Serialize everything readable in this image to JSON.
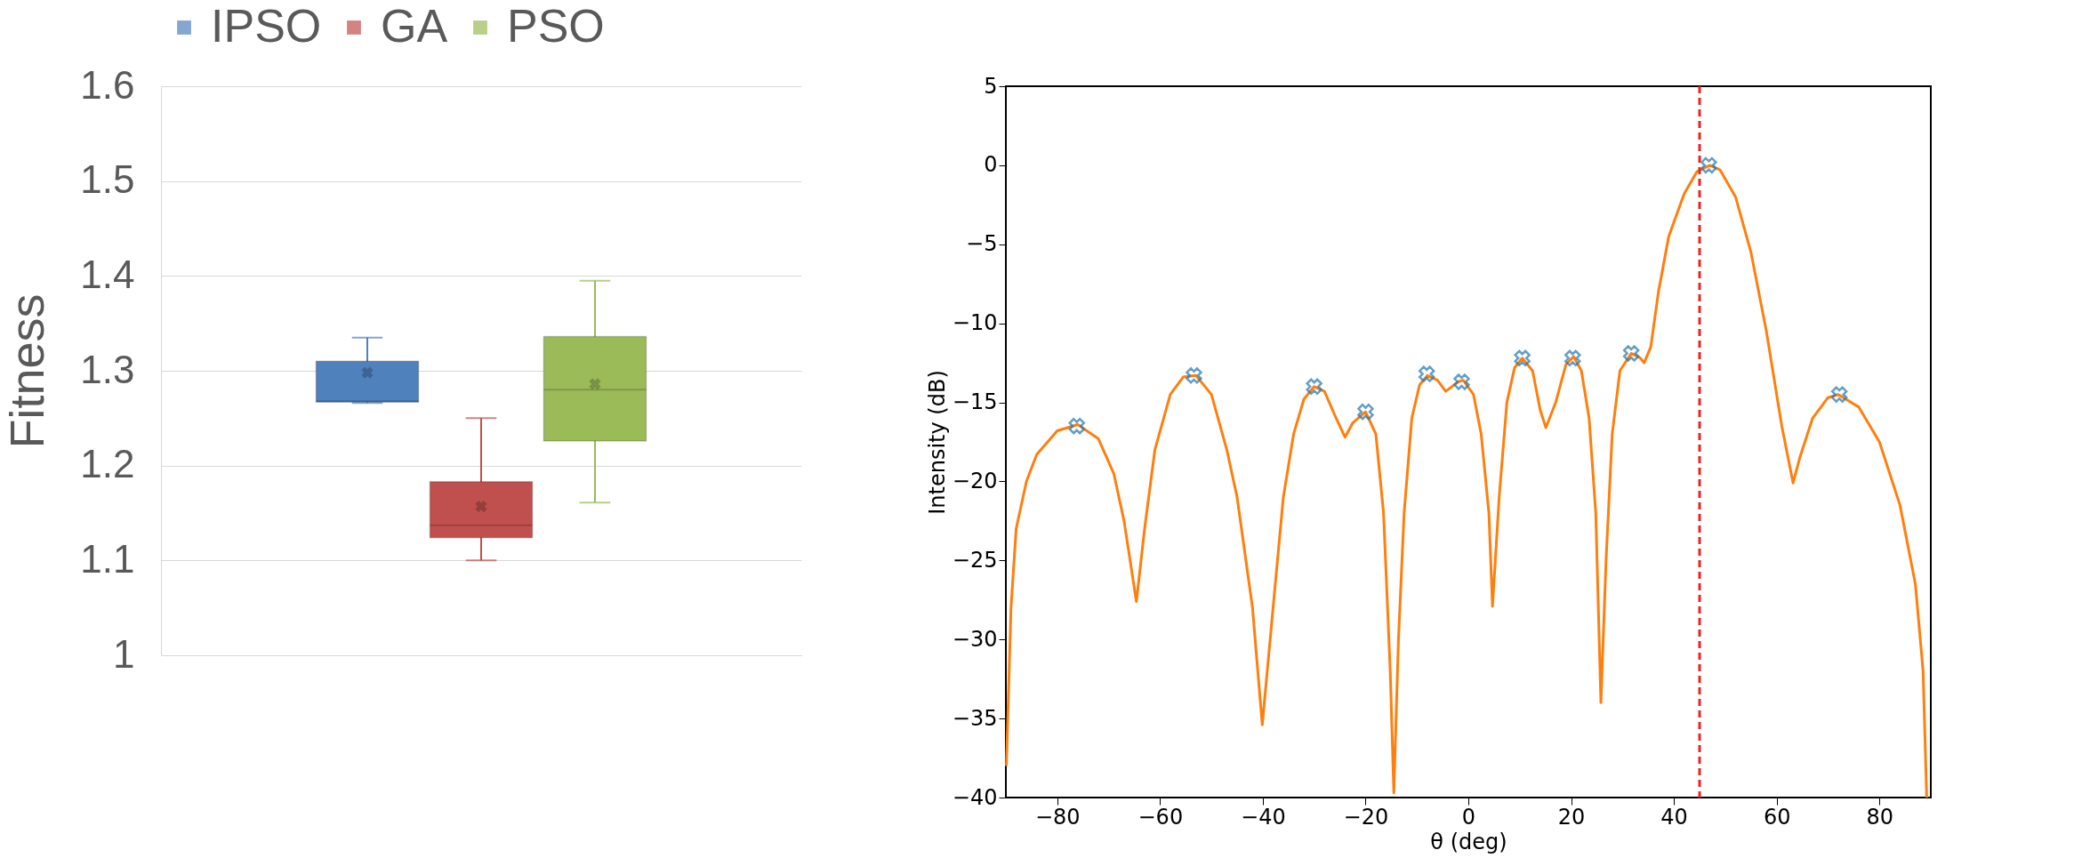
{
  "chart_data": [
    {
      "type": "box",
      "ylabel": "Fitness",
      "categories": [
        null
      ],
      "ylim": [
        1,
        1.6
      ],
      "yticks": [
        1,
        1.1,
        1.2,
        1.3,
        1.4,
        1.5,
        1.6
      ],
      "grid": "y",
      "legend": "top",
      "tick_labels": "y",
      "series": [
        {
          "name": "IPSO",
          "color": "#4f81bd",
          "boxes": [
            {
              "low": 1.266,
              "q1": 1.267,
              "median": 1.268,
              "q3": 1.31,
              "high": 1.335,
              "mean": 1.298
            }
          ]
        },
        {
          "name": "GA",
          "color": "#c0504d",
          "boxes": [
            {
              "low": 1.1,
              "q1": 1.124,
              "median": 1.137,
              "q3": 1.183,
              "high": 1.25,
              "mean": 1.157
            }
          ]
        },
        {
          "name": "PSO",
          "color": "#9bbb59",
          "boxes": [
            {
              "low": 1.161,
              "q1": 1.226,
              "median": 1.28,
              "q3": 1.336,
              "high": 1.395,
              "mean": 1.286
            }
          ]
        }
      ]
    },
    {
      "type": "line",
      "xlabel": "θ (deg)",
      "ylabel": "Intensity (dB)",
      "xlim": [
        -90,
        90
      ],
      "xticks": [
        -80,
        -60,
        -40,
        -20,
        0,
        20,
        40,
        60,
        80
      ],
      "ylim": [
        -40,
        5
      ],
      "yticks": [
        -40,
        -35,
        -30,
        -25,
        -20,
        -15,
        -10,
        -5,
        0,
        5
      ],
      "grid": false,
      "ref_lines": [
        {
          "axis": "x",
          "value": 45,
          "color": "#ee2222",
          "line_style": "dashed"
        }
      ],
      "series": [
        {
          "type": "line",
          "color": "#ff7f0e",
          "marker": "none",
          "x": [
            -89.9,
            -89,
            -88,
            -86,
            -84,
            -80,
            -76,
            -72,
            -69,
            -67,
            -64.6,
            -63,
            -61,
            -58,
            -55.5,
            -53,
            -50,
            -47,
            -45,
            -42,
            -40.1,
            -38,
            -36,
            -34,
            -32,
            -30,
            -28,
            -26,
            -24,
            -22.5,
            -20,
            -18,
            -16.5,
            -15.2,
            -14.5,
            -13.6,
            -12.5,
            -11,
            -9.5,
            -8,
            -6,
            -4.4,
            -2,
            -1,
            1,
            2.5,
            4,
            4.7,
            6,
            7.5,
            9,
            10.5,
            12.5,
            14,
            15.1,
            17,
            19,
            20.5,
            22,
            23.5,
            24.8,
            25.8,
            26.8,
            28,
            29.5,
            31.7,
            33.5,
            34.2,
            35.5,
            37,
            39,
            42,
            44.5,
            47,
            49,
            52,
            55,
            58,
            61,
            63.2,
            64.5,
            67,
            70,
            72,
            76,
            80,
            84,
            87,
            88.5,
            89.2
          ],
          "values": [
            -38,
            -28,
            -23,
            -20,
            -18.3,
            -16.8,
            -16.4,
            -17.3,
            -19.5,
            -22.5,
            -27.6,
            -23,
            -18,
            -14.5,
            -13.4,
            -13.3,
            -14.5,
            -18,
            -21,
            -28,
            -35.4,
            -28,
            -21,
            -17,
            -14.8,
            -14,
            -14.3,
            -15.8,
            -17.2,
            -16.3,
            -15.6,
            -17,
            -22,
            -32,
            -39.7,
            -30,
            -22,
            -16,
            -13.9,
            -13.3,
            -13.6,
            -14.3,
            -13.7,
            -13.6,
            -14.5,
            -17,
            -22,
            -27.9,
            -21,
            -15,
            -12.8,
            -12.2,
            -13,
            -15.5,
            -16.6,
            -15,
            -12.6,
            -12.1,
            -13,
            -16,
            -22,
            -34,
            -25,
            -17,
            -13,
            -11.9,
            -12.2,
            -12.5,
            -11.5,
            -8,
            -4.5,
            -1.8,
            -0.4,
            0,
            -0.3,
            -2,
            -5.5,
            -10.5,
            -16.5,
            -20.1,
            -18.5,
            -16,
            -14.7,
            -14.5,
            -15.3,
            -17.5,
            -21.5,
            -26.5,
            -32,
            -40
          ]
        },
        {
          "type": "scatter",
          "color": "#1f77b4",
          "marker": "cross",
          "x": [
            -76.2,
            -53.4,
            -30,
            -20,
            -8.1,
            -1.3,
            10.5,
            20.3,
            31.7,
            46.8,
            72.2
          ],
          "values": [
            -16.5,
            -13.3,
            -14.0,
            -15.6,
            -13.2,
            -13.7,
            -12.2,
            -12.2,
            -11.9,
            0,
            -14.5
          ]
        }
      ]
    }
  ]
}
